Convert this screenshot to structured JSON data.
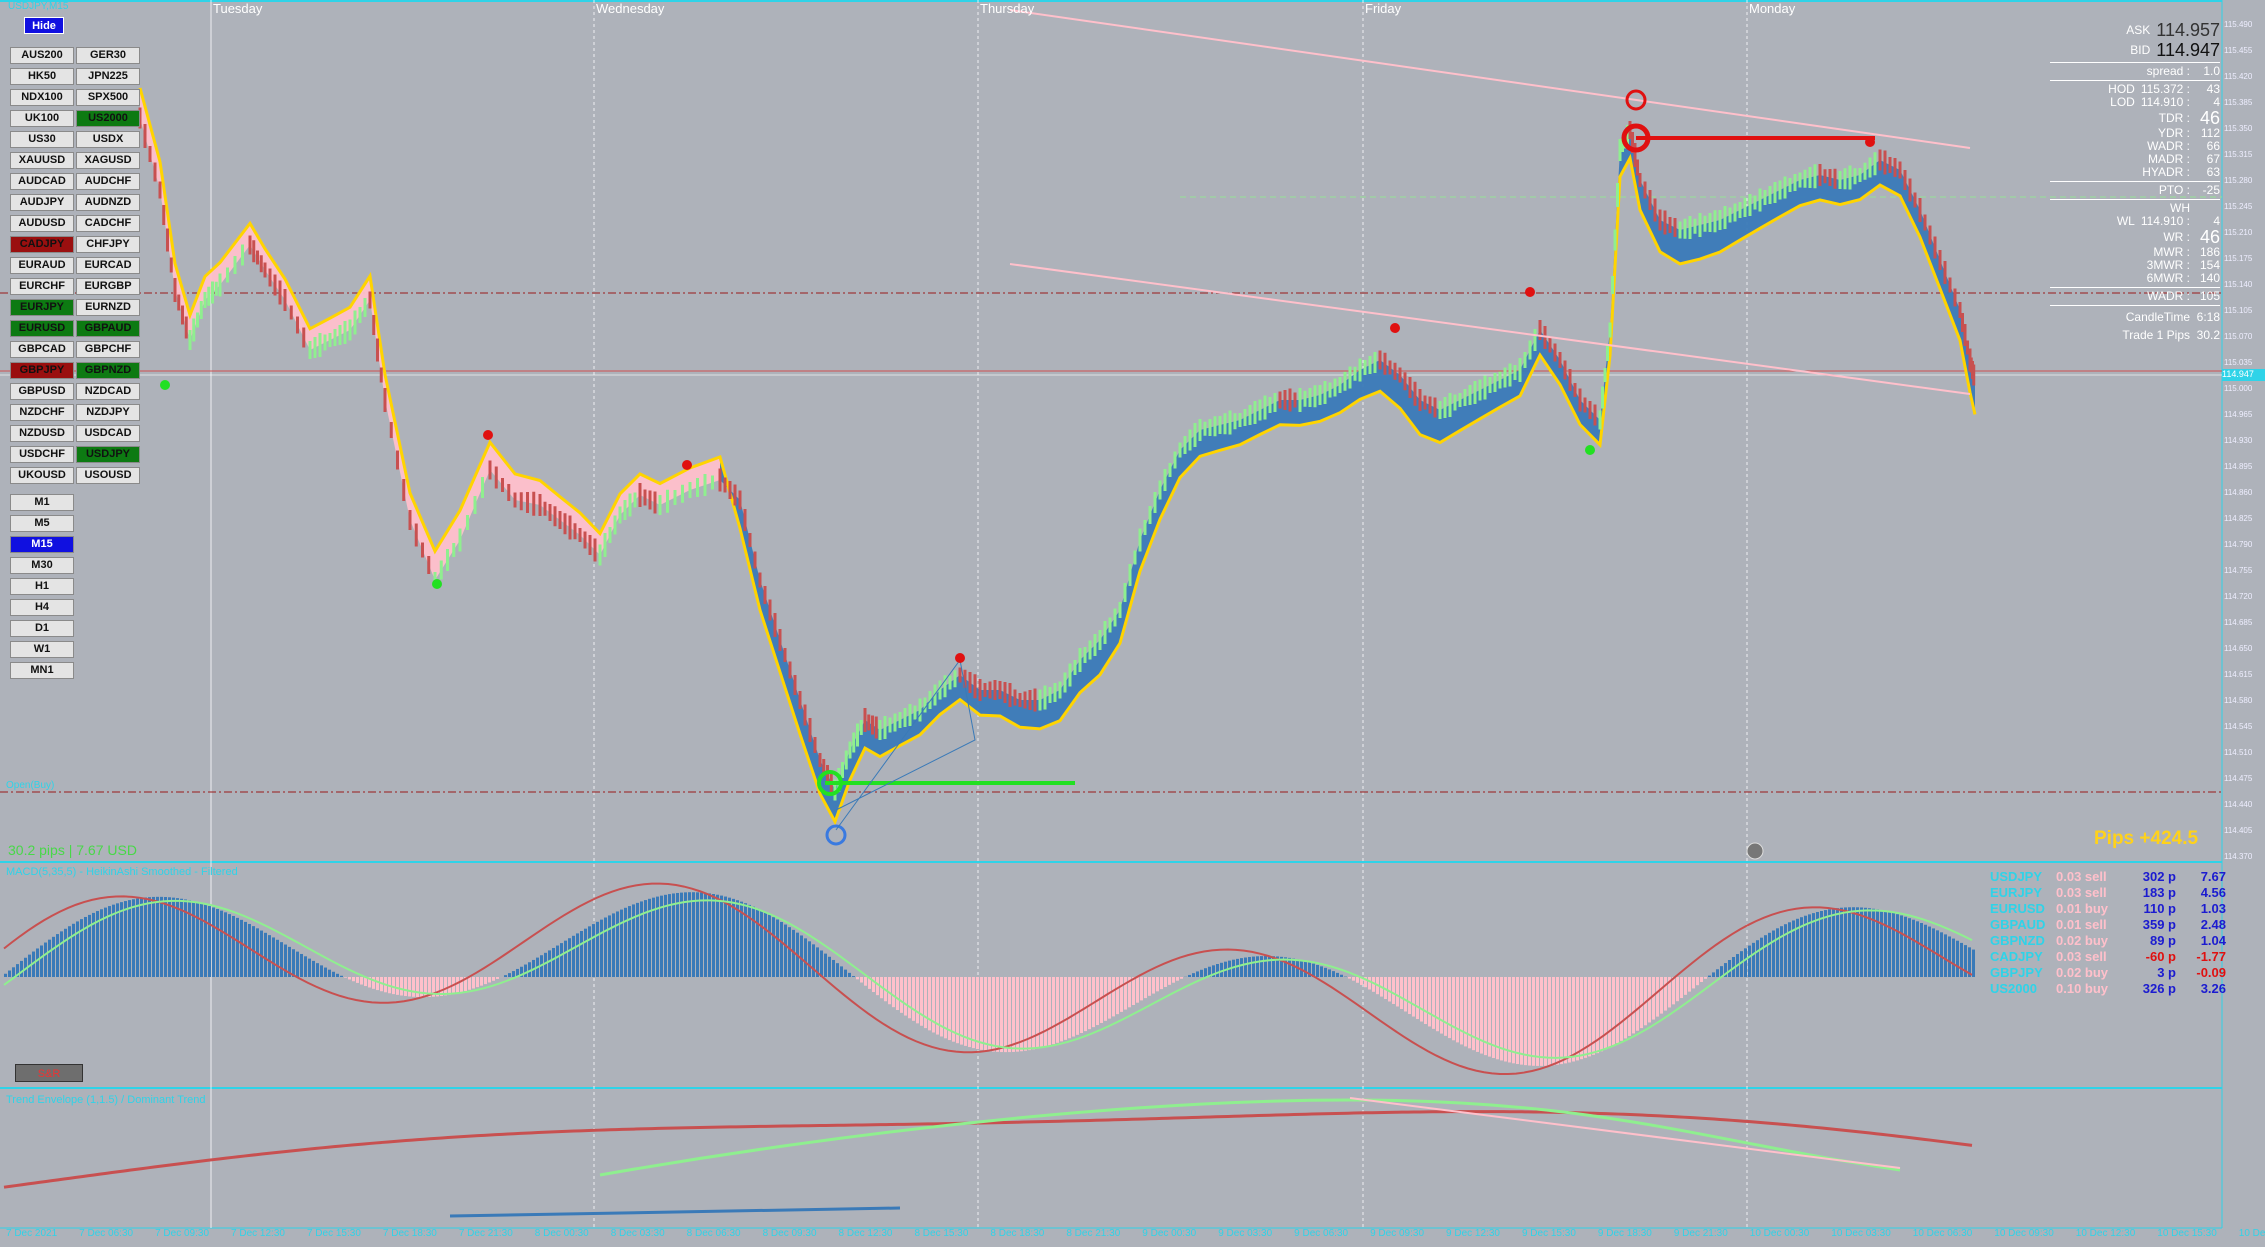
{
  "top_label": "USDJPY,M15",
  "hide_label": "Hide",
  "days": [
    "Tuesday",
    "Wednesday",
    "Thursday",
    "Friday",
    "Monday"
  ],
  "symbols": [
    [
      "AUS200",
      "GER30"
    ],
    [
      "HK50",
      "JPN225"
    ],
    [
      "NDX100",
      "SPX500"
    ],
    [
      "UK100",
      "US2000"
    ],
    [
      "US30",
      "USDX"
    ],
    [
      "XAUUSD",
      "XAGUSD"
    ],
    [
      "AUDCAD",
      "AUDCHF"
    ],
    [
      "AUDJPY",
      "AUDNZD"
    ],
    [
      "AUDUSD",
      "CADCHF"
    ],
    [
      "CADJPY",
      "CHFJPY"
    ],
    [
      "EURAUD",
      "EURCAD"
    ],
    [
      "EURCHF",
      "EURGBP"
    ],
    [
      "EURJPY",
      "EURNZD"
    ],
    [
      "EURUSD",
      "GBPAUD"
    ],
    [
      "GBPCAD",
      "GBPCHF"
    ],
    [
      "GBPJPY",
      "GBPNZD"
    ],
    [
      "GBPUSD",
      "NZDCAD"
    ],
    [
      "NZDCHF",
      "NZDJPY"
    ],
    [
      "NZDUSD",
      "USDCAD"
    ],
    [
      "USDCHF",
      "USDJPY"
    ],
    [
      "UKOUSD",
      "USOUSD"
    ]
  ],
  "symbol_states": {
    "US2000": "green",
    "CADJPY": "red",
    "EURJPY": "green",
    "EURUSD": "green",
    "GBPAUD": "green",
    "GBPJPY": "red",
    "GBPNZD": "green",
    "USDJPY": "green"
  },
  "timeframes": [
    "M1",
    "M5",
    "M15",
    "M30",
    "H1",
    "H4",
    "D1",
    "W1",
    "MN1"
  ],
  "active_timeframe": "M15",
  "info": {
    "ask_label": "ASK",
    "ask": "114.957",
    "bid_label": "BID",
    "bid": "114.947",
    "spread_label": "spread :",
    "spread": "1.0",
    "hod_label": "HOD",
    "hod": "115.372 :",
    "hod_v": "43",
    "lod_label": "LOD",
    "lod": "114.910 :",
    "lod_v": "4",
    "tdr_label": "TDR :",
    "tdr": "46",
    "ydr_label": "YDR :",
    "ydr": "112",
    "wadr_label": "WADR :",
    "wadr": "66",
    "madr_label": "MADR :",
    "madr": "67",
    "hyadr_label": "HYADR :",
    "hyadr": "63",
    "pto_label": "PTO :",
    "pto": "-25",
    "wh_label": "WH",
    "wh": "",
    "wl_label": "WL",
    "wl": "114.910 :",
    "wl_v": "4",
    "wr_label": "WR :",
    "wr": "46",
    "mwr_label": "MWR :",
    "mwr": "186",
    "mwr3_label": "3MWR :",
    "mwr3": "154",
    "mwr6_label": "6MWR :",
    "mwr6": "140",
    "wadr2_label": "WADR :",
    "wadr2": "105",
    "candle_label": "CandleTime",
    "candle": "6:18",
    "trade_label": "Trade 1 Pips",
    "trade": "30.2"
  },
  "pips_total": "Pips +424.5",
  "trade_info": "30.2 pips | 7.67 USD",
  "open_label": "Open(Buy)",
  "ind1_title": "MACD(5,35,5) - HeikinAshi Smoothed - Filtered",
  "ind2_title": "Trend Envelope (1,1.5) / Dominant Trend",
  "sr_label": "S&R",
  "trades": [
    {
      "sym": "USDJPY",
      "lot": "0.03 sell",
      "pips": "302 p",
      "usd": "7.67",
      "pc": "#1b1bd0",
      "uc": "#1b1bd0"
    },
    {
      "sym": "EURJPY",
      "lot": "0.03 sell",
      "pips": "183 p",
      "usd": "4.56",
      "pc": "#1b1bd0",
      "uc": "#1b1bd0"
    },
    {
      "sym": "EURUSD",
      "lot": "0.01 buy",
      "pips": "110 p",
      "usd": "1.03",
      "pc": "#1b1bd0",
      "uc": "#1b1bd0"
    },
    {
      "sym": "GBPAUD",
      "lot": "0.01 sell",
      "pips": "359 p",
      "usd": "2.48",
      "pc": "#1b1bd0",
      "uc": "#1b1bd0"
    },
    {
      "sym": "GBPNZD",
      "lot": "0.02 buy",
      "pips": "89 p",
      "usd": "1.04",
      "pc": "#1b1bd0",
      "uc": "#1b1bd0"
    },
    {
      "sym": "CADJPY",
      "lot": "0.03 sell",
      "pips": "-60 p",
      "usd": "-1.77",
      "pc": "#e01010",
      "uc": "#e01010"
    },
    {
      "sym": "GBPJPY",
      "lot": "0.02 buy",
      "pips": "3 p",
      "usd": "-0.09",
      "pc": "#1b1bd0",
      "uc": "#e01010"
    },
    {
      "sym": "US2000",
      "lot": "0.10 buy",
      "pips": "326 p",
      "usd": "3.26",
      "pc": "#1b1bd0",
      "uc": "#1b1bd0"
    }
  ],
  "yaxis": [
    "115.490",
    "115.455",
    "115.420",
    "115.385",
    "115.350",
    "115.315",
    "115.280",
    "115.245",
    "115.210",
    "115.175",
    "115.140",
    "115.105",
    "115.070",
    "115.035",
    "115.000",
    "114.965",
    "114.930",
    "114.895",
    "114.860",
    "114.825",
    "114.790",
    "114.755",
    "114.720",
    "114.685",
    "114.650",
    "114.615",
    "114.580",
    "114.545",
    "114.510",
    "114.475",
    "114.440",
    "114.405",
    "114.370"
  ],
  "price_tag": "114.947",
  "bottom_times": [
    "7 Dec 2021",
    "7 Dec 06:30",
    "7 Dec 09:30",
    "7 Dec 12:30",
    "7 Dec 15:30",
    "7 Dec 18:30",
    "7 Dec 21:30",
    "8 Dec 00:30",
    "8 Dec 03:30",
    "8 Dec 06:30",
    "8 Dec 09:30",
    "8 Dec 12:30",
    "8 Dec 15:30",
    "8 Dec 18:30",
    "8 Dec 21:30",
    "9 Dec 00:30",
    "9 Dec 03:30",
    "9 Dec 06:30",
    "9 Dec 09:30",
    "9 Dec 12:30",
    "9 Dec 15:30",
    "9 Dec 18:30",
    "9 Dec 21:30",
    "10 Dec 00:30",
    "10 Dec 03:30",
    "10 Dec 06:30",
    "10 Dec 09:30",
    "10 Dec 12:30",
    "10 Dec 15:30",
    "10 Dec 18:30",
    "10 Dec 21:30",
    "13 Dec 00:30"
  ],
  "colors": {
    "bg": "#aeb2ba",
    "up": "#8fef8f",
    "down": "#c85050",
    "pink": "#ffc0cb",
    "blue": "#3a7ab8",
    "yellow": "#ffd400",
    "cyan": "#2fd3e8"
  }
}
